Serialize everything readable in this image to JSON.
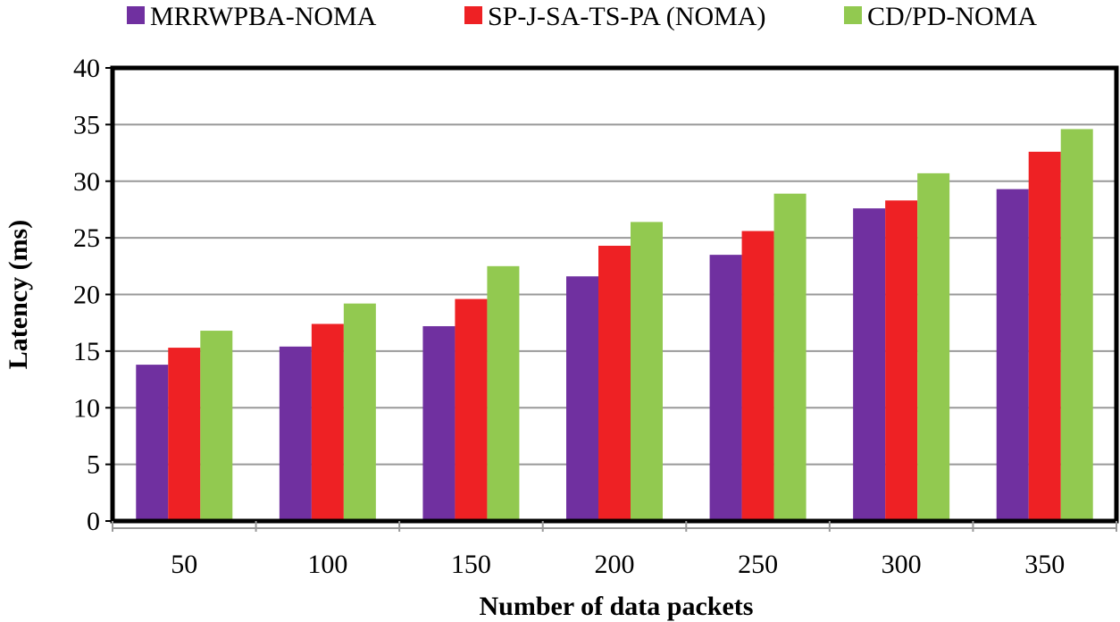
{
  "chart_data": {
    "type": "bar",
    "title": "",
    "xlabel": "Number of data packets",
    "ylabel": "Latency (ms)",
    "categories": [
      "50",
      "100",
      "150",
      "200",
      "250",
      "300",
      "350"
    ],
    "ylim": [
      0,
      40
    ],
    "yticks": [
      0,
      5,
      10,
      15,
      20,
      25,
      30,
      35,
      40
    ],
    "grid": true,
    "legend_position": "top",
    "series": [
      {
        "name": "MRRWPBA-NOMA",
        "color": "#7030a0",
        "values": [
          13.8,
          15.4,
          17.2,
          21.6,
          23.5,
          27.6,
          29.3
        ]
      },
      {
        "name": "SP-J-SA-TS-PA (NOMA)",
        "color": "#ee2124",
        "values": [
          15.3,
          17.4,
          19.6,
          24.3,
          25.6,
          28.3,
          32.6
        ]
      },
      {
        "name": "CD/PD-NOMA",
        "color": "#92c950",
        "values": [
          16.8,
          19.2,
          22.5,
          26.4,
          28.9,
          30.7,
          34.6
        ]
      }
    ]
  }
}
